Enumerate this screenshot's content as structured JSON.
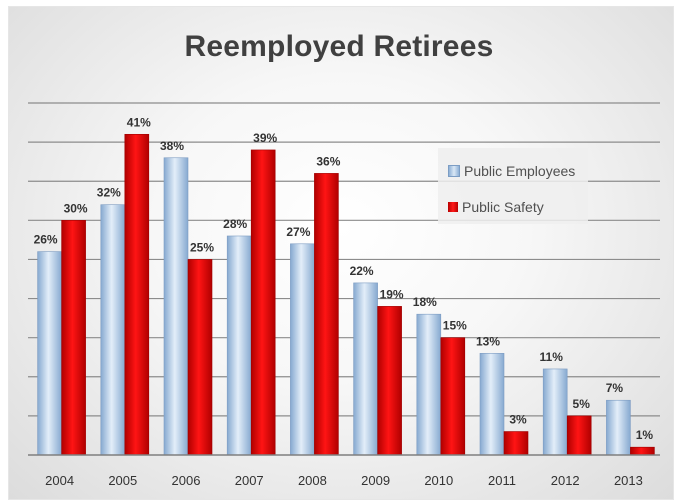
{
  "chart_data": {
    "type": "bar",
    "title": "Reemployed Retirees",
    "categories": [
      "2004",
      "2005",
      "2006",
      "2007",
      "2008",
      "2009",
      "2010",
      "2011",
      "2012",
      "2013"
    ],
    "series": [
      {
        "name": "Public Employees",
        "values": [
          26,
          32,
          38,
          28,
          27,
          22,
          18,
          13,
          11,
          7
        ],
        "labels": [
          "26%",
          "32%",
          "38%",
          "28%",
          "27%",
          "22%",
          "18%",
          "13%",
          "11%",
          "7%"
        ],
        "color": "#a9c6e6"
      },
      {
        "name": "Public Safety",
        "values": [
          30,
          41,
          25,
          39,
          36,
          19,
          15,
          3,
          5,
          1
        ],
        "labels": [
          "30%",
          "41%",
          "25%",
          "39%",
          "36%",
          "19%",
          "15%",
          "3%",
          "5%",
          "1%"
        ],
        "color": "#e8000b"
      }
    ],
    "ylim": [
      0,
      45
    ],
    "grid": true,
    "legend_position": "top-right",
    "xlabel": "",
    "ylabel": ""
  }
}
